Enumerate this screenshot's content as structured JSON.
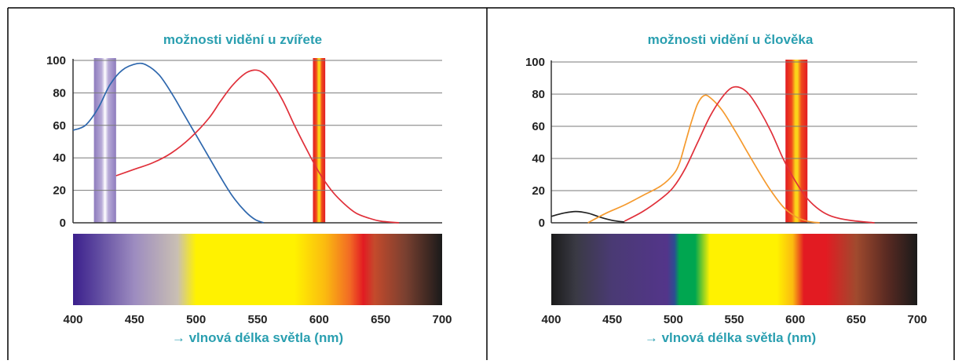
{
  "chart_data": [
    {
      "type": "line",
      "title": "možnosti vidění u zvířete",
      "xlabel": "→ vlnová délka světla (nm)",
      "ylabel": "",
      "xlim": [
        400,
        700
      ],
      "ylim": [
        0,
        100
      ],
      "x_ticks": [
        400,
        450,
        500,
        550,
        600,
        650,
        700
      ],
      "y_ticks": [
        0,
        20,
        40,
        60,
        80,
        100
      ],
      "grid": true,
      "series": [
        {
          "color": "#2e67ad",
          "points": [
            [
              400,
              57
            ],
            [
              410,
              60
            ],
            [
              420,
              70
            ],
            [
              430,
              85
            ],
            [
              440,
              94
            ],
            [
              452,
              98
            ],
            [
              460,
              97
            ],
            [
              470,
              91
            ],
            [
              480,
              80
            ],
            [
              490,
              67
            ],
            [
              500,
              54
            ],
            [
              510,
              41
            ],
            [
              520,
              28
            ],
            [
              530,
              16
            ],
            [
              540,
              7
            ],
            [
              548,
              2
            ],
            [
              555,
              0
            ]
          ]
        },
        {
          "color": "#e0303a",
          "points": [
            [
              435,
              29
            ],
            [
              450,
              33
            ],
            [
              465,
              37
            ],
            [
              480,
              43
            ],
            [
              495,
              52
            ],
            [
              510,
              64
            ],
            [
              520,
              75
            ],
            [
              530,
              85
            ],
            [
              540,
              92
            ],
            [
              547,
              94
            ],
            [
              553,
              93
            ],
            [
              560,
              88
            ],
            [
              570,
              76
            ],
            [
              580,
              60
            ],
            [
              590,
              45
            ],
            [
              600,
              31
            ],
            [
              610,
              20
            ],
            [
              620,
              12
            ],
            [
              630,
              6
            ],
            [
              640,
              3
            ],
            [
              650,
              1
            ],
            [
              665,
              0
            ]
          ]
        }
      ],
      "bands": [
        {
          "from": 417,
          "to": 435,
          "kind": "violet"
        },
        {
          "from": 595,
          "to": 605,
          "kind": "red"
        }
      ],
      "spectrum": [
        {
          "nm": 400,
          "color": "#3b1f8c"
        },
        {
          "nm": 420,
          "color": "#5f4aa0"
        },
        {
          "nm": 450,
          "color": "#9d8cc0"
        },
        {
          "nm": 485,
          "color": "#c9bfb3"
        },
        {
          "nm": 500,
          "color": "#fff200"
        },
        {
          "nm": 580,
          "color": "#fff200"
        },
        {
          "nm": 605,
          "color": "#fbba10"
        },
        {
          "nm": 625,
          "color": "#f26a24"
        },
        {
          "nm": 636,
          "color": "#e21b22"
        },
        {
          "nm": 645,
          "color": "#c44a2c"
        },
        {
          "nm": 670,
          "color": "#7a4030"
        },
        {
          "nm": 700,
          "color": "#1a1a1a"
        }
      ]
    },
    {
      "type": "line",
      "title": "možnosti vidění u člověka",
      "xlabel": "→ vlnová délka světla (nm)",
      "ylabel": "",
      "xlim": [
        400,
        700
      ],
      "ylim": [
        0,
        100
      ],
      "x_ticks": [
        400,
        450,
        500,
        550,
        600,
        650,
        700
      ],
      "y_ticks": [
        0,
        20,
        40,
        60,
        80,
        100
      ],
      "grid": true,
      "series": [
        {
          "color": "#222222",
          "points": [
            [
              400,
              4
            ],
            [
              410,
              6
            ],
            [
              420,
              7
            ],
            [
              430,
              6
            ],
            [
              440,
              3.5
            ],
            [
              450,
              1.5
            ],
            [
              460,
              0.5
            ]
          ]
        },
        {
          "color": "#f59a2e",
          "points": [
            [
              430,
              0
            ],
            [
              445,
              6
            ],
            [
              460,
              11
            ],
            [
              475,
              17
            ],
            [
              490,
              23
            ],
            [
              500,
              30
            ],
            [
              505,
              37
            ],
            [
              510,
              50
            ],
            [
              515,
              63
            ],
            [
              520,
              74
            ],
            [
              525,
              79
            ],
            [
              530,
              78
            ],
            [
              540,
              70
            ],
            [
              550,
              58
            ],
            [
              560,
              45
            ],
            [
              570,
              32
            ],
            [
              580,
              20
            ],
            [
              590,
              10
            ],
            [
              600,
              4
            ],
            [
              610,
              1
            ],
            [
              620,
              0
            ]
          ]
        },
        {
          "color": "#e0303a",
          "points": [
            [
              460,
              1
            ],
            [
              475,
              7
            ],
            [
              490,
              15
            ],
            [
              500,
              22
            ],
            [
              510,
              34
            ],
            [
              520,
              50
            ],
            [
              530,
              66
            ],
            [
              540,
              78
            ],
            [
              548,
              84
            ],
            [
              555,
              84
            ],
            [
              562,
              80
            ],
            [
              570,
              71
            ],
            [
              580,
              57
            ],
            [
              590,
              40
            ],
            [
              600,
              26
            ],
            [
              610,
              15
            ],
            [
              620,
              8
            ],
            [
              630,
              4
            ],
            [
              645,
              1.5
            ],
            [
              665,
              0
            ]
          ]
        }
      ],
      "bands": [
        {
          "from": 592,
          "to": 610,
          "kind": "red"
        }
      ],
      "spectrum": [
        {
          "nm": 400,
          "color": "#1a1a1a"
        },
        {
          "nm": 420,
          "color": "#3a3a44"
        },
        {
          "nm": 450,
          "color": "#4a3a74"
        },
        {
          "nm": 495,
          "color": "#53358a"
        },
        {
          "nm": 501,
          "color": "#2c4d92"
        },
        {
          "nm": 505,
          "color": "#00a650"
        },
        {
          "nm": 518,
          "color": "#00a650"
        },
        {
          "nm": 530,
          "color": "#fff200"
        },
        {
          "nm": 585,
          "color": "#fff200"
        },
        {
          "nm": 598,
          "color": "#fbba10"
        },
        {
          "nm": 607,
          "color": "#e21b22"
        },
        {
          "nm": 625,
          "color": "#e21b22"
        },
        {
          "nm": 650,
          "color": "#a04a2e"
        },
        {
          "nm": 675,
          "color": "#5a2a22"
        },
        {
          "nm": 700,
          "color": "#1a1a1a"
        }
      ]
    }
  ]
}
